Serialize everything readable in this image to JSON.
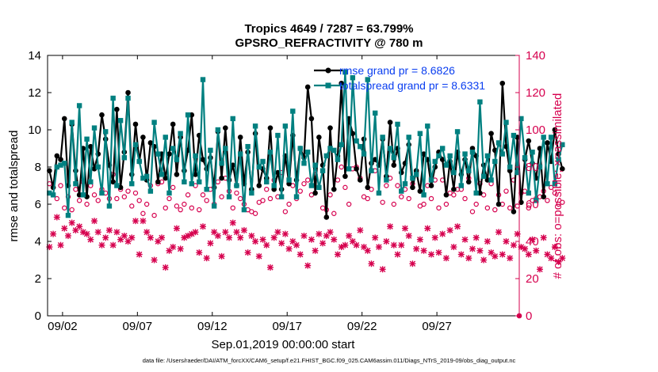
{
  "chart_data": {
    "type": "line",
    "title": "Tropics 4649 / 7287 = 63.799%",
    "subtitle": "GPSRO_REFRACTIVITY @ 780 m",
    "xlabel": "Sep.01,2019 00:00:00 start",
    "ylabel": "rmse and totalspread",
    "ylabel_right": "# of obs: o=possible; ×=assimilated",
    "xlim": [
      0,
      31.5
    ],
    "ylim": [
      0,
      14
    ],
    "ylim_right": [
      0,
      140
    ],
    "x_ticks": [
      {
        "value": 1,
        "label": "09/02"
      },
      {
        "value": 6,
        "label": "09/07"
      },
      {
        "value": 11,
        "label": "09/12"
      },
      {
        "value": 16,
        "label": "09/17"
      },
      {
        "value": 21,
        "label": "09/22"
      },
      {
        "value": 26,
        "label": "09/27"
      }
    ],
    "y_ticks": [
      "0",
      "2",
      "4",
      "6",
      "8",
      "10",
      "12",
      "14"
    ],
    "y_ticks_right": [
      "0",
      "20",
      "40",
      "60",
      "80",
      "100",
      "120",
      "140"
    ],
    "legend": [
      "rmse grand pr = 8.6826",
      "totalspread grand pr = 8.6331"
    ],
    "legend_location": "top-right",
    "x_start": 0.125,
    "x_step": 0.25,
    "series": [
      {
        "name": "rmse",
        "color": "#000000",
        "axis": "left",
        "values": [
          7.8,
          6.9,
          8.6,
          8.4,
          10.6,
          7.0,
          10.3,
          7.8,
          6.5,
          9.0,
          6.4,
          9.1,
          7.9,
          8.7,
          10.8,
          9.5,
          8.1,
          7.2,
          11.1,
          6.9,
          8.8,
          12.0,
          7.6,
          10.3,
          8.3,
          9.6,
          7.3,
          9.3,
          9.1,
          7.2,
          8.7,
          7.4,
          8.7,
          10.3,
          7.6,
          9.6,
          7.8,
          8.9,
          10.8,
          7.6,
          9.7,
          8.4,
          7.9,
          8.5,
          6.9,
          9.9,
          7.4,
          10.1,
          7.3,
          8.1,
          7.0,
          9.6,
          7.1,
          8.8,
          6.8,
          9.8,
          7.0,
          7.9,
          7.4,
          10.1,
          6.8,
          7.7,
          6.8,
          8.6,
          7.1,
          9.7,
          7.3,
          9.0,
          8.5,
          12.3,
          10.6,
          6.6,
          9.6,
          8.1,
          5.3,
          10.1,
          6.8,
          8.6,
          12.5,
          7.5,
          10.6,
          9.8,
          7.9,
          7.3,
          9.5,
          6.9,
          8.2,
          8.4,
          8.1,
          9.5,
          7.5,
          10.4,
          8.1,
          9.0,
          7.7,
          8.2,
          9.2,
          6.9,
          7.8,
          6.7,
          8.7,
          8.4,
          7.0,
          8.0,
          8.8,
          8.4,
          6.5,
          8.3,
          6.8,
          8.8,
          7.6,
          8.4,
          7.2,
          9.0,
          8.6,
          6.6,
          8.1,
          7.3,
          9.8,
          8.9,
          6.0,
          12.5,
          9.1,
          7.8,
          5.6,
          9.6,
          6.1,
          8.4,
          9.4,
          8.2,
          7.4,
          9.0,
          6.4,
          9.3,
          8.3,
          10.0,
          8.7,
          7.9
        ]
      },
      {
        "name": "totalspread",
        "color": "#008080",
        "axis": "left",
        "values": [
          6.6,
          6.5,
          8.0,
          8.1,
          8.2,
          5.4,
          10.4,
          7.1,
          11.3,
          6.5,
          9.5,
          7.2,
          10.1,
          8.0,
          6.6,
          9.9,
          5.9,
          11.7,
          7.0,
          10.5,
          8.5,
          11.7,
          7.1,
          9.2,
          8.3,
          7.4,
          7.5,
          6.7,
          10.4,
          8.7,
          7.6,
          9.6,
          6.6,
          9.0,
          8.4,
          9.8,
          7.2,
          10.8,
          7.1,
          8.6,
          7.2,
          12.7,
          6.8,
          8.9,
          5.9,
          10.0,
          8.2,
          9.0,
          6.4,
          10.6,
          7.0,
          8.7,
          5.7,
          9.1,
          6.6,
          10.2,
          8.0,
          8.3,
          7.2,
          8.8,
          7.0,
          9.7,
          6.4,
          10.2,
          7.3,
          11.0,
          6.4,
          9.0,
          8.2,
          8.8,
          7.0,
          8.1,
          6.9,
          7.8,
          8.6,
          9.0,
          8.9,
          8.4,
          9.2,
          13.1,
          7.9,
          12.8,
          9.4,
          9.1,
          8.7,
          12.7,
          7.8,
          10.9,
          6.6,
          9.6,
          7.3,
          9.0,
          8.5,
          10.3,
          6.7,
          7.1,
          9.6,
          7.4,
          7.6,
          9.8,
          6.5,
          10.2,
          7.3,
          8.3,
          8.6,
          9.0,
          8.1,
          8.6,
          7.7,
          9.9,
          7.0,
          8.7,
          7.8,
          8.8,
          6.6,
          11.5,
          7.5,
          8.6,
          7.3,
          8.3,
          9.3,
          8.7,
          10.4,
          8.0,
          9.7,
          7.7,
          10.6,
          8.5,
          6.6,
          8.8,
          6.2,
          8.0,
          9.6,
          7.1,
          9.6,
          7.1,
          8.4,
          9.2
        ]
      },
      {
        "name": "obs possible",
        "color": "#d6004e",
        "axis": "right",
        "marker": "o",
        "values": [
          71,
          69,
          63,
          70,
          58,
          64,
          57,
          68,
          62,
          72,
          60,
          70,
          65,
          62,
          68,
          66,
          63,
          76,
          63,
          68,
          64,
          67,
          59,
          66,
          62,
          55,
          60,
          70,
          54,
          71,
          72,
          58,
          63,
          69,
          59,
          57,
          60,
          65,
          58,
          70,
          57,
          65,
          62,
          68,
          60,
          72,
          64,
          74,
          67,
          58,
          66,
          63,
          60,
          57,
          56,
          55,
          61,
          62,
          68,
          63,
          73,
          64,
          77,
          56,
          60,
          70,
          63,
          67,
          71,
          73,
          65,
          76,
          69,
          58,
          57,
          65,
          55,
          73,
          80,
          69,
          60,
          79,
          80,
          74,
          64,
          63,
          68,
          78,
          66,
          61,
          70,
          74,
          60,
          70,
          64,
          68,
          63,
          71,
          77,
          59,
          60,
          70,
          63,
          73,
          58,
          73,
          60,
          66,
          65,
          68,
          68,
          63,
          74,
          56,
          60,
          71,
          65,
          58,
          71,
          57,
          65,
          60,
          67,
          58,
          73,
          59,
          66,
          67,
          58,
          62,
          63,
          64,
          67,
          62,
          69,
          66,
          60,
          61
        ]
      },
      {
        "name": "obs assimilated",
        "color": "#d6004e",
        "axis": "right",
        "marker": "x",
        "values": [
          37,
          44,
          53,
          38,
          47,
          43,
          50,
          46,
          48,
          45,
          44,
          41,
          51,
          45,
          38,
          42,
          46,
          38,
          45,
          41,
          43,
          40,
          42,
          51,
          33,
          51,
          45,
          42,
          30,
          40,
          42,
          26,
          35,
          37,
          47,
          36,
          42,
          43,
          44,
          45,
          34,
          48,
          31,
          39,
          45,
          43,
          32,
          45,
          42,
          50,
          45,
          42,
          46,
          34,
          43,
          40,
          32,
          41,
          38,
          26,
          42,
          45,
          39,
          44,
          36,
          40,
          38,
          33,
          43,
          27,
          41,
          35,
          44,
          39,
          43,
          45,
          41,
          33,
          37,
          38,
          43,
          40,
          38,
          46,
          37,
          35,
          28,
          42,
          37,
          25,
          40,
          48,
          38,
          33,
          38,
          47,
          43,
          28,
          36,
          41,
          35,
          47,
          33,
          42,
          34,
          44,
          31,
          46,
          37,
          48,
          33,
          41,
          31,
          36,
          42,
          35,
          30,
          40,
          34,
          32,
          45,
          33,
          40,
          31,
          38,
          44,
          37,
          36,
          33,
          41,
          35,
          25,
          42,
          33,
          31,
          37,
          29,
          31
        ]
      }
    ]
  },
  "footer": "data file: /Users/raeder/DAI/ATM_forcXX/CAM6_setup/f.e21.FHIST_BGC.f09_025.CAM6assim.011/Diags_NTrS_2019-09/obs_diag_output.nc"
}
